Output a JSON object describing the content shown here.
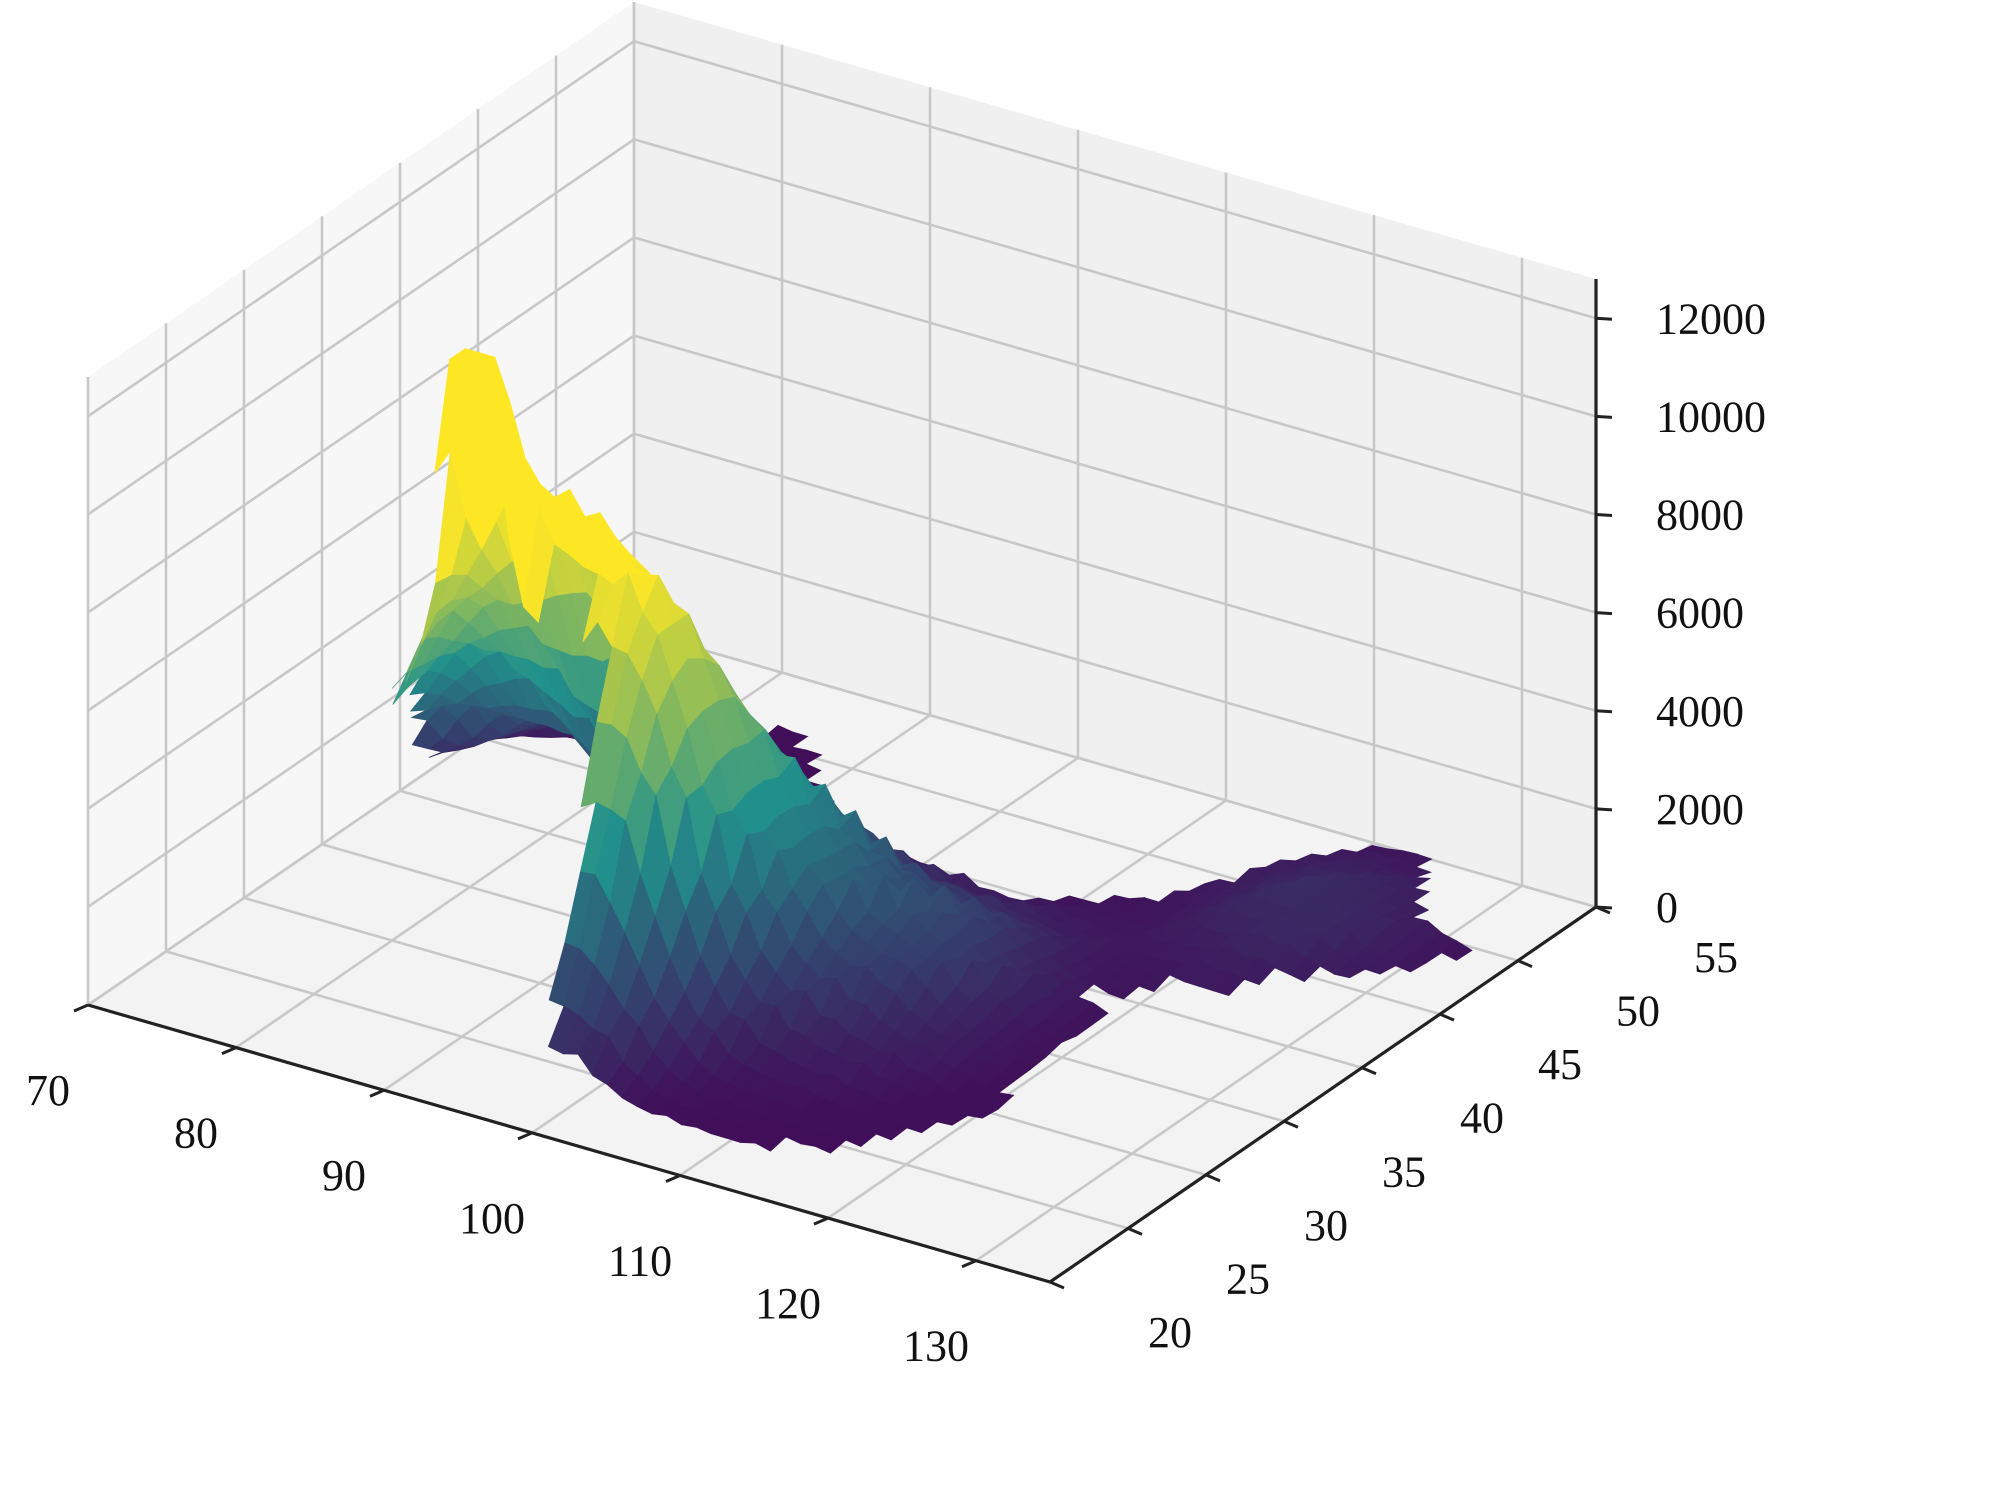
{
  "chart_data": {
    "type": "surface3d",
    "colormap": "viridis",
    "colors": {
      "pane_back": "#f0f0f0",
      "pane_side": "#f7f7f7",
      "pane_floor": "#f3f3f3",
      "grid": "#c8c8c8",
      "axis": "#222222",
      "surface_low": "#440154",
      "surface_mid": "#21918c",
      "surface_high": "#fde725"
    },
    "xlim": [
      70,
      135
    ],
    "ylim": [
      20,
      55
    ],
    "zlim": [
      0,
      12800
    ],
    "x_ticks": [
      "70",
      "80",
      "90",
      "100",
      "110",
      "120",
      "130"
    ],
    "y_ticks": [
      "20",
      "25",
      "30",
      "35",
      "40",
      "45",
      "50",
      "55"
    ],
    "z_ticks": [
      "0",
      "2000",
      "4000",
      "6000",
      "8000",
      "10000",
      "12000"
    ],
    "x_tick_values": [
      70,
      80,
      90,
      100,
      110,
      120,
      130
    ],
    "y_tick_values": [
      20,
      25,
      30,
      35,
      40,
      45,
      50,
      55
    ],
    "z_tick_values": [
      0,
      2000,
      4000,
      6000,
      8000,
      10000,
      12000
    ],
    "grid": true,
    "outline": [
      [
        73,
        41
      ],
      [
        75,
        45
      ],
      [
        80,
        47
      ],
      [
        83,
        48
      ],
      [
        86,
        50
      ],
      [
        88,
        49
      ],
      [
        92,
        46
      ],
      [
        96,
        43
      ],
      [
        100,
        42
      ],
      [
        104,
        42
      ],
      [
        107,
        41.5
      ],
      [
        110,
        42.5
      ],
      [
        113,
        44.5
      ],
      [
        116,
        45.5
      ],
      [
        119,
        47.5
      ],
      [
        120,
        50
      ],
      [
        122,
        52.5
      ],
      [
        125,
        53.5
      ],
      [
        128,
        51
      ],
      [
        131,
        48
      ],
      [
        134,
        48
      ],
      [
        133,
        46
      ],
      [
        131,
        43
      ],
      [
        128,
        42
      ],
      [
        125,
        40
      ],
      [
        122,
        39.5
      ],
      [
        121,
        38
      ],
      [
        119,
        37.5
      ],
      [
        121,
        36.5
      ],
      [
        121,
        33
      ],
      [
        121,
        31
      ],
      [
        122,
        29
      ],
      [
        120,
        26
      ],
      [
        117,
        23.5
      ],
      [
        113,
        22
      ],
      [
        110,
        21.5
      ],
      [
        108,
        21.7
      ],
      [
        106,
        22.5
      ],
      [
        103,
        22.5
      ],
      [
        100,
        21.5
      ],
      [
        98,
        24
      ],
      [
        97,
        28
      ],
      [
        94,
        29
      ],
      [
        91,
        28
      ],
      [
        88,
        27.8
      ],
      [
        85,
        28.5
      ],
      [
        81,
        30
      ],
      [
        79,
        32
      ],
      [
        77,
        35
      ],
      [
        74,
        37.5
      ],
      [
        73.5,
        39.5
      ],
      [
        73,
        41
      ]
    ],
    "elevation_peaks": [
      {
        "x": 87,
        "y": 28,
        "z": 11000,
        "sx": 1.4,
        "sy": 1.1
      },
      {
        "x": 90,
        "y": 29,
        "z": 6000,
        "sx": 7,
        "sy": 2.5
      },
      {
        "x": 90,
        "y": 32,
        "z": 4800,
        "sx": 9,
        "sy": 3
      },
      {
        "x": 80,
        "y": 36,
        "z": 2800,
        "sx": 5,
        "sy": 3
      },
      {
        "x": 99,
        "y": 27,
        "z": 3000,
        "sx": 3,
        "sy": 3
      },
      {
        "x": 101,
        "y": 35,
        "z": 2600,
        "sx": 5,
        "sy": 4
      },
      {
        "x": 85,
        "y": 42,
        "z": 1800,
        "sx": 6,
        "sy": 1.6
      },
      {
        "x": 112,
        "y": 35,
        "z": 1300,
        "sx": 4,
        "sy": 4
      },
      {
        "x": 125,
        "y": 46,
        "z": 900,
        "sx": 5,
        "sy": 4
      }
    ],
    "base_elevation": 400
  }
}
